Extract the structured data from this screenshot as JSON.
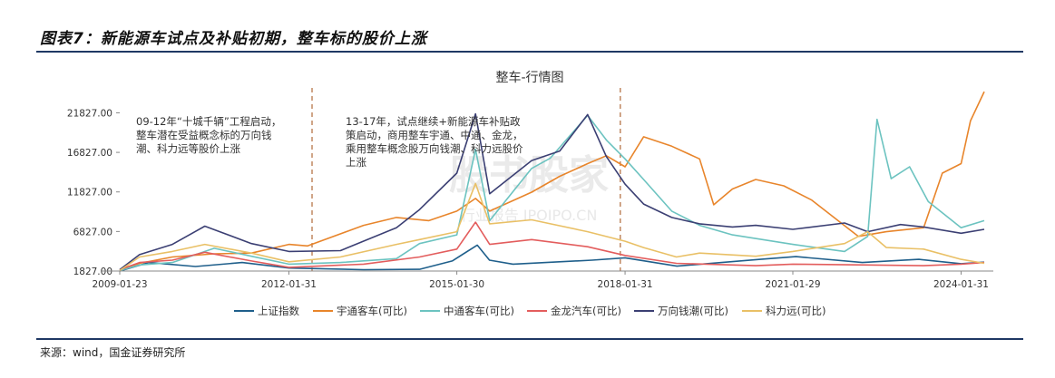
{
  "header": {
    "figure_title": "图表7：新能源车试点及补贴初期，整车标的股价上涨"
  },
  "footer": {
    "source": "来源：wind，国金证券研究所"
  },
  "watermark": {
    "main": "股书股家",
    "sub": "行业报告 IPOIPO.CN"
  },
  "chart_data": {
    "type": "line",
    "title": "整车-行情图",
    "ylim": [
      1827,
      23827
    ],
    "yticks": [
      "1827.00",
      "6827.00",
      "11827.00",
      "16827.00",
      "21827.00"
    ],
    "ytick_values": [
      1827,
      6827,
      11827,
      16827,
      21827
    ],
    "xlim": [
      "2009-01-23",
      "2024-06-30"
    ],
    "xticks": [
      "2009-01-23",
      "2012-01-31",
      "2015-01-30",
      "2018-01-31",
      "2021-01-29",
      "2024-01-31"
    ],
    "grid": false,
    "legend": "bottom",
    "markers": [
      {
        "date": "2012-06-30",
        "style": "dashed",
        "color": "#b06a3a"
      },
      {
        "date": "2017-12-31",
        "style": "dashed",
        "color": "#b06a3a"
      }
    ],
    "annotations": [
      {
        "lines": [
          "09-12年“十城千辆”工程启动，",
          "整车潜在受益概念标的万向钱",
          "潮、科力远等股价上涨"
        ]
      },
      {
        "lines": [
          "13-17年，试点继续+新能源车补贴政",
          "策启动，商用整车宇通、中通、金龙，",
          "乘用整车概念股万向钱潮、科力远股价",
          "上涨"
        ]
      }
    ],
    "series": [
      {
        "name": "上证指数",
        "color": "#1f5f8b",
        "points": [
          [
            "2009-01-23",
            1827
          ],
          [
            "2009-08-01",
            2900
          ],
          [
            "2010-06-01",
            2400
          ],
          [
            "2011-04-01",
            2900
          ],
          [
            "2012-01-31",
            2200
          ],
          [
            "2013-06-01",
            2000
          ],
          [
            "2014-06-01",
            2050
          ],
          [
            "2014-12-31",
            3100
          ],
          [
            "2015-06-12",
            5100
          ],
          [
            "2015-08-31",
            3200
          ],
          [
            "2016-01-31",
            2700
          ],
          [
            "2017-06-30",
            3200
          ],
          [
            "2018-01-31",
            3500
          ],
          [
            "2019-01-04",
            2450
          ],
          [
            "2020-07-01",
            3300
          ],
          [
            "2021-02-18",
            3650
          ],
          [
            "2022-04-27",
            2900
          ],
          [
            "2023-05-01",
            3300
          ],
          [
            "2024-01-31",
            2750
          ],
          [
            "2024-06-30",
            2950
          ]
        ]
      },
      {
        "name": "宇通客车(可比)",
        "color": "#e8852b",
        "points": [
          [
            "2009-01-23",
            1900
          ],
          [
            "2009-06-01",
            2800
          ],
          [
            "2010-01-01",
            3600
          ],
          [
            "2010-10-01",
            4000
          ],
          [
            "2011-06-01",
            4100
          ],
          [
            "2012-01-31",
            5200
          ],
          [
            "2012-06-01",
            5000
          ],
          [
            "2013-06-01",
            7600
          ],
          [
            "2014-01-01",
            8600
          ],
          [
            "2014-08-01",
            8200
          ],
          [
            "2015-01-30",
            9400
          ],
          [
            "2015-06-01",
            11000
          ],
          [
            "2015-09-01",
            9400
          ],
          [
            "2016-06-01",
            11800
          ],
          [
            "2016-12-01",
            13800
          ],
          [
            "2017-06-01",
            15400
          ],
          [
            "2017-10-01",
            16400
          ],
          [
            "2018-01-31",
            15000
          ],
          [
            "2018-06-01",
            18800
          ],
          [
            "2018-12-01",
            17600
          ],
          [
            "2019-06-01",
            16000
          ],
          [
            "2019-09-01",
            10200
          ],
          [
            "2020-01-01",
            12200
          ],
          [
            "2020-06-01",
            13400
          ],
          [
            "2020-12-01",
            12600
          ],
          [
            "2021-06-01",
            10800
          ],
          [
            "2022-04-01",
            6200
          ],
          [
            "2022-10-01",
            6800
          ],
          [
            "2023-06-01",
            7300
          ],
          [
            "2023-10-01",
            14200
          ],
          [
            "2024-01-31",
            15400
          ],
          [
            "2024-04-01",
            20800
          ],
          [
            "2024-06-30",
            24500
          ]
        ]
      },
      {
        "name": "中通客车(可比)",
        "color": "#6cc3c0",
        "points": [
          [
            "2009-01-23",
            1900
          ],
          [
            "2009-06-01",
            2600
          ],
          [
            "2010-01-01",
            2900
          ],
          [
            "2010-10-01",
            4700
          ],
          [
            "2011-06-01",
            3700
          ],
          [
            "2012-01-31",
            2700
          ],
          [
            "2013-01-01",
            2900
          ],
          [
            "2014-01-01",
            3400
          ],
          [
            "2014-06-01",
            5300
          ],
          [
            "2015-01-30",
            6400
          ],
          [
            "2015-06-01",
            17200
          ],
          [
            "2015-09-01",
            8200
          ],
          [
            "2016-06-01",
            14800
          ],
          [
            "2016-10-01",
            16100
          ],
          [
            "2017-06-01",
            21500
          ],
          [
            "2017-10-01",
            18400
          ],
          [
            "2018-01-31",
            16000
          ],
          [
            "2018-06-01",
            13400
          ],
          [
            "2018-12-01",
            9400
          ],
          [
            "2019-06-01",
            7600
          ],
          [
            "2020-01-01",
            6400
          ],
          [
            "2021-01-29",
            5200
          ],
          [
            "2022-01-01",
            4300
          ],
          [
            "2022-06-01",
            6200
          ],
          [
            "2022-08-01",
            21000
          ],
          [
            "2022-11-01",
            13500
          ],
          [
            "2023-03-01",
            15000
          ],
          [
            "2023-07-01",
            10600
          ],
          [
            "2024-01-31",
            7300
          ],
          [
            "2024-06-30",
            8200
          ]
        ]
      },
      {
        "name": "金龙汽车(可比)",
        "color": "#e35d5d",
        "points": [
          [
            "2009-01-23",
            2000
          ],
          [
            "2009-06-01",
            2900
          ],
          [
            "2010-01-01",
            3200
          ],
          [
            "2010-08-01",
            4200
          ],
          [
            "2011-06-01",
            3100
          ],
          [
            "2012-01-31",
            2300
          ],
          [
            "2013-06-01",
            2700
          ],
          [
            "2014-06-01",
            3600
          ],
          [
            "2015-01-30",
            4600
          ],
          [
            "2015-06-01",
            8000
          ],
          [
            "2015-09-01",
            5200
          ],
          [
            "2016-06-01",
            5800
          ],
          [
            "2017-06-01",
            4900
          ],
          [
            "2018-01-31",
            3800
          ],
          [
            "2019-01-01",
            2800
          ],
          [
            "2020-06-01",
            2500
          ],
          [
            "2021-01-29",
            2700
          ],
          [
            "2022-06-01",
            2600
          ],
          [
            "2023-06-01",
            2500
          ],
          [
            "2024-01-31",
            2700
          ],
          [
            "2024-06-30",
            2900
          ]
        ]
      },
      {
        "name": "万向钱潮(可比)",
        "color": "#3b3f73",
        "points": [
          [
            "2009-01-23",
            2000
          ],
          [
            "2009-06-01",
            3900
          ],
          [
            "2010-01-01",
            5200
          ],
          [
            "2010-08-01",
            7500
          ],
          [
            "2011-06-01",
            5300
          ],
          [
            "2012-01-31",
            4300
          ],
          [
            "2013-01-01",
            4400
          ],
          [
            "2014-01-01",
            7300
          ],
          [
            "2014-06-01",
            9600
          ],
          [
            "2015-01-30",
            14200
          ],
          [
            "2015-06-01",
            21700
          ],
          [
            "2015-09-01",
            11600
          ],
          [
            "2016-06-01",
            15800
          ],
          [
            "2016-12-01",
            17000
          ],
          [
            "2017-06-01",
            21600
          ],
          [
            "2017-10-01",
            16300
          ],
          [
            "2018-01-31",
            12800
          ],
          [
            "2018-06-01",
            10300
          ],
          [
            "2018-12-01",
            8600
          ],
          [
            "2019-06-01",
            7800
          ],
          [
            "2020-01-01",
            7400
          ],
          [
            "2020-06-01",
            7600
          ],
          [
            "2021-01-29",
            7100
          ],
          [
            "2022-01-01",
            7900
          ],
          [
            "2022-06-01",
            6800
          ],
          [
            "2023-01-01",
            7700
          ],
          [
            "2023-06-01",
            7400
          ],
          [
            "2024-01-31",
            6600
          ],
          [
            "2024-06-30",
            7100
          ]
        ]
      },
      {
        "name": "科力远(可比)",
        "color": "#e9c066",
        "points": [
          [
            "2009-01-23",
            1900
          ],
          [
            "2009-06-01",
            3600
          ],
          [
            "2010-01-01",
            4300
          ],
          [
            "2010-08-01",
            5200
          ],
          [
            "2011-06-01",
            4100
          ],
          [
            "2012-01-31",
            3000
          ],
          [
            "2013-01-01",
            3600
          ],
          [
            "2014-01-01",
            5200
          ],
          [
            "2014-06-01",
            5800
          ],
          [
            "2015-01-30",
            6800
          ],
          [
            "2015-06-01",
            12900
          ],
          [
            "2015-09-01",
            7800
          ],
          [
            "2016-06-01",
            8300
          ],
          [
            "2017-06-01",
            6800
          ],
          [
            "2018-01-31",
            5600
          ],
          [
            "2018-06-01",
            4800
          ],
          [
            "2019-01-01",
            3600
          ],
          [
            "2019-06-01",
            4100
          ],
          [
            "2020-06-01",
            3700
          ],
          [
            "2021-01-29",
            4300
          ],
          [
            "2022-01-01",
            5300
          ],
          [
            "2022-06-01",
            6800
          ],
          [
            "2022-10-01",
            4800
          ],
          [
            "2023-06-01",
            4600
          ],
          [
            "2024-01-31",
            3300
          ],
          [
            "2024-06-30",
            2800
          ]
        ]
      }
    ]
  }
}
